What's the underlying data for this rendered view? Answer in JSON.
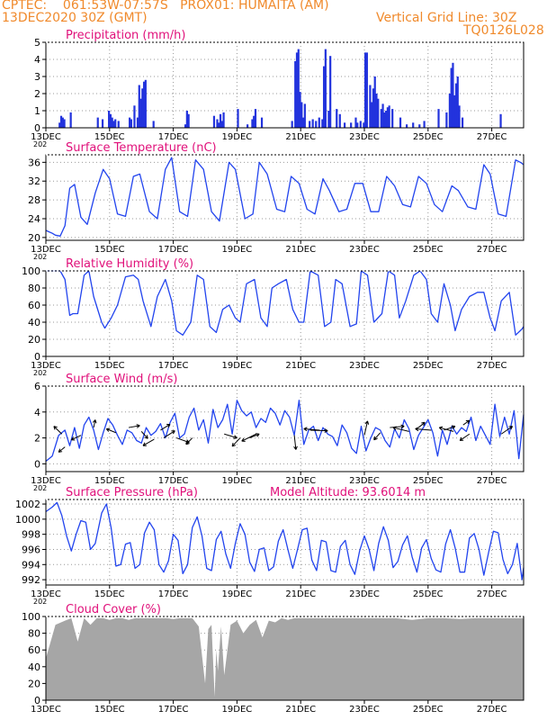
{
  "header": {
    "line1": "CPTEC:    061:53W-07:57S   PROX01: HUMAITA (AM)",
    "line2_left": "13DEC2020 30Z (GMT)",
    "line2_right": "Vertical Grid Line: 30Z",
    "line3_right": "TQ0126L028"
  },
  "colors": {
    "header": "#f08a2c",
    "title": "#e0107a",
    "line": "#2244ee",
    "bars": "#2233dd",
    "cloud": "#a6a6a6",
    "grid": "#999999"
  },
  "x_axis": {
    "labels": [
      "13DEC",
      "15DEC",
      "17DEC",
      "19DEC",
      "21DEC",
      "23DEC",
      "25DEC",
      "27DEC"
    ],
    "label_days": [
      0,
      2,
      4,
      6,
      8,
      10,
      12,
      14
    ],
    "range_days": [
      0,
      15
    ],
    "stub": "202"
  },
  "chart_data": [
    {
      "id": "precip",
      "type": "bar",
      "title": "Precipitation (mm/h)",
      "ylim": [
        0,
        5
      ],
      "yticks": [
        0,
        1,
        2,
        3,
        4,
        5
      ],
      "grid": true,
      "x": [
        1.6,
        1.75,
        2.0,
        2.1,
        2.85,
        2.95,
        3.0,
        3.35,
        4.35,
        4.45,
        5.25,
        5.4,
        5.55,
        6.0,
        6.3,
        6.5,
        6.75,
        7.8,
        7.9,
        7.95,
        8.0,
        8.05,
        8.1,
        8.25,
        8.35,
        8.45,
        8.55,
        8.65,
        8.75,
        8.9,
        9.1,
        9.2,
        9.35,
        9.55,
        9.7,
        9.85,
        9.95,
        10.05,
        10.2,
        10.3,
        10.4,
        10.55,
        10.65,
        10.75,
        10.85,
        11.1,
        11.3,
        11.5,
        11.7,
        11.85,
        12.3,
        12.55,
        12.7,
        12.75,
        12.8,
        12.85,
        12.9,
        12.95,
        13.05,
        14.25
      ],
      "values": [
        0.6,
        0.5,
        0.8,
        0.4,
        0.6,
        1.7,
        2.3,
        0.4,
        0.2,
        0.8,
        0.7,
        0.3,
        0.9,
        1.1,
        0.2,
        0.7,
        0.6,
        3.9,
        4.6,
        2.1,
        1.5,
        0.6,
        1.4,
        0.4,
        0.5,
        0.4,
        0.6,
        0.5,
        4.6,
        4.2,
        1.1,
        0.8,
        0.3,
        0.3,
        0.6,
        0.4,
        0.3,
        4.4,
        1.5,
        3.0,
        1.7,
        1.4,
        1.0,
        1.3,
        1.1,
        0.6,
        0.2,
        0.3,
        0.2,
        0.4,
        1.1,
        0.9,
        3.5,
        3.8,
        1.9,
        2.6,
        3.0,
        1.3,
        0.6,
        0.8
      ],
      "points": [
        [
          0.4,
          0.3
        ],
        [
          0.45,
          0.7
        ],
        [
          0.5,
          0.6
        ],
        [
          0.55,
          0.5
        ],
        [
          0.75,
          0.9
        ],
        [
          1.95,
          1.0
        ],
        [
          2.05,
          0.6
        ],
        [
          2.15,
          0.5
        ],
        [
          2.25,
          0.4
        ],
        [
          2.6,
          0.6
        ],
        [
          2.65,
          0.5
        ],
        [
          2.75,
          1.3
        ],
        [
          2.9,
          2.5
        ],
        [
          3.05,
          2.7
        ],
        [
          3.1,
          2.8
        ],
        [
          4.4,
          1.0
        ],
        [
          5.35,
          0.5
        ],
        [
          5.45,
          0.8
        ],
        [
          5.5,
          0.4
        ],
        [
          6.45,
          0.5
        ],
        [
          6.55,
          1.1
        ],
        [
          7.7,
          0.4
        ],
        [
          7.85,
          4.4
        ],
        [
          8.7,
          3.6
        ],
        [
          8.85,
          1.0
        ],
        [
          9.75,
          0.3
        ],
        [
          10.0,
          4.4
        ],
        [
          10.15,
          2.5
        ],
        [
          10.25,
          2.3
        ],
        [
          10.35,
          2.0
        ],
        [
          10.5,
          1.1
        ],
        [
          10.6,
          0.9
        ],
        [
          10.7,
          1.2
        ],
        [
          12.65,
          2.0
        ],
        [
          12.7,
          1.0
        ]
      ]
    },
    {
      "id": "temp",
      "type": "line",
      "title": "Surface Temperature (nC)",
      "ylim": [
        19.4,
        37.6
      ],
      "yticks": [
        20,
        24,
        28,
        32,
        36
      ],
      "grid": true,
      "x": [
        0,
        0.1,
        0.2,
        0.3,
        0.45,
        0.6,
        0.75,
        0.9,
        1.1,
        1.3,
        1.55,
        1.8,
        2.0,
        2.25,
        2.5,
        2.75,
        2.95,
        3.25,
        3.5,
        3.75,
        3.95,
        4.2,
        4.45,
        4.7,
        4.95,
        5.2,
        5.45,
        5.75,
        5.95,
        6.25,
        6.5,
        6.7,
        6.95,
        7.25,
        7.5,
        7.7,
        7.95,
        8.2,
        8.45,
        8.7,
        8.9,
        9.2,
        9.45,
        9.7,
        9.95,
        10.2,
        10.45,
        10.7,
        10.95,
        11.2,
        11.45,
        11.7,
        11.95,
        12.2,
        12.45,
        12.75,
        12.95,
        13.25,
        13.5,
        13.75,
        13.95,
        14.2,
        14.45,
        14.75,
        14.9,
        15.0
      ],
      "y": [
        21.5,
        21.2,
        20.9,
        20.5,
        20.3,
        22.5,
        30.5,
        31.3,
        24.3,
        22.8,
        29.5,
        34.5,
        32.5,
        25.0,
        24.5,
        33.0,
        33.5,
        25.5,
        24.0,
        34.5,
        37.0,
        25.5,
        24.5,
        36.5,
        34.5,
        25.5,
        23.5,
        36.0,
        34.5,
        24.0,
        25.0,
        36.0,
        33.5,
        26.0,
        25.5,
        33.0,
        31.5,
        26.0,
        25.0,
        32.5,
        30.0,
        25.5,
        26.0,
        31.5,
        31.5,
        25.5,
        25.5,
        33.0,
        31.0,
        27.0,
        26.5,
        33.0,
        31.5,
        27.0,
        25.5,
        31.0,
        30.0,
        26.5,
        26.0,
        35.5,
        33.5,
        25.0,
        24.5,
        36.5,
        36.0,
        35.5
      ]
    },
    {
      "id": "rh",
      "type": "line",
      "title": "Relative Humidity (%)",
      "ylim": [
        0,
        100
      ],
      "yticks": [
        0,
        20,
        40,
        60,
        80,
        100
      ],
      "grid": true,
      "x": [
        0,
        0.25,
        0.45,
        0.6,
        0.75,
        0.85,
        1.0,
        1.2,
        1.35,
        1.5,
        1.75,
        1.85,
        2.05,
        2.25,
        2.5,
        2.75,
        2.9,
        3.05,
        3.3,
        3.5,
        3.75,
        3.95,
        4.1,
        4.3,
        4.55,
        4.75,
        4.95,
        5.15,
        5.35,
        5.55,
        5.75,
        5.95,
        6.1,
        6.3,
        6.55,
        6.75,
        6.95,
        7.1,
        7.3,
        7.55,
        7.75,
        7.95,
        8.1,
        8.3,
        8.55,
        8.75,
        8.95,
        9.1,
        9.3,
        9.55,
        9.75,
        9.9,
        10.1,
        10.3,
        10.55,
        10.75,
        10.95,
        11.1,
        11.3,
        11.55,
        11.75,
        11.95,
        12.1,
        12.3,
        12.5,
        12.7,
        12.85,
        13.05,
        13.3,
        13.55,
        13.75,
        13.95,
        14.1,
        14.3,
        14.55,
        14.75,
        14.95,
        15.0
      ],
      "y": [
        100,
        100,
        100,
        90,
        48,
        50,
        50,
        95,
        100,
        70,
        40,
        33,
        45,
        60,
        93,
        95,
        90,
        65,
        35,
        70,
        90,
        65,
        30,
        25,
        40,
        95,
        90,
        35,
        28,
        55,
        60,
        45,
        40,
        85,
        90,
        45,
        35,
        80,
        85,
        90,
        55,
        40,
        40,
        100,
        95,
        35,
        40,
        90,
        85,
        35,
        38,
        100,
        95,
        40,
        50,
        100,
        95,
        45,
        65,
        95,
        100,
        90,
        50,
        40,
        85,
        60,
        30,
        55,
        70,
        75,
        75,
        45,
        30,
        65,
        75,
        25,
        32,
        35
      ]
    },
    {
      "id": "wind",
      "type": "line",
      "title": "Surface Wind (m/s)",
      "ylim": [
        -0.6,
        6
      ],
      "yticks": [
        0,
        2,
        4,
        6
      ],
      "grid": true,
      "x": [
        0,
        0.2,
        0.4,
        0.6,
        0.75,
        0.9,
        1.05,
        1.2,
        1.35,
        1.5,
        1.65,
        1.8,
        1.95,
        2.1,
        2.25,
        2.4,
        2.55,
        2.7,
        2.85,
        3.0,
        3.15,
        3.3,
        3.45,
        3.6,
        3.75,
        3.9,
        4.05,
        4.2,
        4.35,
        4.5,
        4.65,
        4.8,
        4.95,
        5.1,
        5.25,
        5.4,
        5.55,
        5.7,
        5.85,
        6.0,
        6.15,
        6.3,
        6.45,
        6.6,
        6.75,
        6.9,
        7.05,
        7.2,
        7.35,
        7.5,
        7.65,
        7.8,
        7.95,
        8.1,
        8.25,
        8.4,
        8.55,
        8.7,
        8.85,
        9.0,
        9.15,
        9.3,
        9.45,
        9.6,
        9.75,
        9.9,
        10.05,
        10.2,
        10.35,
        10.5,
        10.65,
        10.8,
        10.95,
        11.1,
        11.25,
        11.4,
        11.55,
        11.7,
        11.85,
        12.0,
        12.15,
        12.3,
        12.45,
        12.6,
        12.75,
        12.9,
        13.05,
        13.2,
        13.35,
        13.5,
        13.65,
        13.8,
        13.95,
        14.1,
        14.25,
        14.4,
        14.55,
        14.7,
        14.85,
        15.0
      ],
      "y": [
        0.2,
        0.6,
        2.2,
        2.6,
        1.4,
        2.8,
        1.2,
        3.0,
        3.6,
        2.6,
        1.1,
        2.4,
        3.5,
        3.0,
        2.2,
        1.5,
        2.6,
        2.4,
        1.8,
        1.6,
        2.8,
        2.2,
        2.5,
        3.1,
        2.0,
        3.2,
        3.9,
        2.0,
        2.3,
        3.6,
        4.3,
        2.6,
        3.4,
        1.6,
        4.2,
        2.8,
        3.4,
        4.6,
        2.3,
        4.9,
        4.1,
        3.7,
        4.0,
        2.8,
        3.5,
        3.2,
        4.3,
        3.9,
        3.0,
        4.1,
        3.6,
        2.2,
        4.9,
        1.5,
        2.6,
        2.9,
        1.8,
        2.8,
        2.3,
        2.1,
        1.4,
        3.0,
        2.4,
        1.2,
        0.8,
        2.9,
        1.0,
        2.0,
        2.8,
        2.6,
        1.8,
        1.3,
        2.7,
        2.0,
        3.4,
        2.7,
        1.1,
        2.2,
        2.8,
        3.4,
        2.4,
        0.6,
        2.6,
        1.5,
        2.9,
        2.3,
        2.8,
        2.5,
        3.6,
        1.8,
        2.9,
        2.2,
        1.5,
        4.6,
        2.1,
        3.6,
        2.3,
        4.1,
        0.4,
        3.8
      ],
      "arrows": [
        [
          0.5,
          2.3,
          -0.25,
          0.6
        ],
        [
          0.6,
          1.3,
          -0.2,
          -0.4
        ],
        [
          1.1,
          2.2,
          -0.3,
          -0.35
        ],
        [
          1.5,
          2.8,
          0.05,
          0.6
        ],
        [
          2.2,
          2.4,
          -0.3,
          0.3
        ],
        [
          2.6,
          2.8,
          0.35,
          0.15
        ],
        [
          3.0,
          2.5,
          0.2,
          -0.55
        ],
        [
          3.4,
          1.9,
          -0.35,
          -0.5
        ],
        [
          3.6,
          2.6,
          0.3,
          0.45
        ],
        [
          3.7,
          2.0,
          0.35,
          0.55
        ],
        [
          4.1,
          2.0,
          0.4,
          -0.35
        ],
        [
          4.6,
          2.0,
          -0.2,
          -0.5
        ],
        [
          5.6,
          2.3,
          0.4,
          -0.3
        ],
        [
          6.1,
          2.0,
          -0.25,
          -0.65
        ],
        [
          6.4,
          2.0,
          0.3,
          0.3
        ],
        [
          6.6,
          2.3,
          -0.45,
          -0.55
        ],
        [
          7.8,
          2.2,
          0.05,
          -1.1
        ],
        [
          8.3,
          2.6,
          0.55,
          -0.05
        ],
        [
          8.6,
          2.6,
          -0.5,
          0.1
        ],
        [
          10.0,
          2.2,
          0.1,
          1.1
        ],
        [
          10.5,
          2.4,
          -0.2,
          -0.55
        ],
        [
          10.8,
          2.8,
          0.45,
          0.1
        ],
        [
          11.4,
          2.5,
          -0.5,
          0.3
        ],
        [
          11.7,
          2.8,
          0.2,
          0.4
        ],
        [
          12.1,
          2.6,
          -0.5,
          0.1
        ],
        [
          12.5,
          2.6,
          0.35,
          0.3
        ],
        [
          12.8,
          2.5,
          -0.45,
          0.3
        ],
        [
          13.1,
          3.0,
          0.2,
          0.35
        ],
        [
          13.3,
          2.3,
          -0.3,
          -0.5
        ],
        [
          14.3,
          2.3,
          0.35,
          0.6
        ]
      ]
    },
    {
      "id": "pressure",
      "type": "line",
      "title": "Surface Pressure (hPa)",
      "annotation": "Model Altitude: 93.6014 m",
      "ylim": [
        991.3,
        1002.6
      ],
      "yticks": [
        992,
        994,
        996,
        998,
        1000,
        1002
      ],
      "grid": true,
      "x": [
        0,
        0.2,
        0.35,
        0.5,
        0.65,
        0.8,
        0.95,
        1.1,
        1.25,
        1.4,
        1.55,
        1.75,
        1.9,
        2.05,
        2.2,
        2.35,
        2.5,
        2.65,
        2.8,
        2.95,
        3.1,
        3.25,
        3.4,
        3.55,
        3.7,
        3.85,
        4.0,
        4.15,
        4.3,
        4.45,
        4.6,
        4.75,
        4.9,
        5.05,
        5.2,
        5.35,
        5.5,
        5.65,
        5.8,
        5.95,
        6.1,
        6.25,
        6.4,
        6.55,
        6.7,
        6.85,
        7.0,
        7.15,
        7.3,
        7.45,
        7.6,
        7.75,
        7.9,
        8.05,
        8.2,
        8.35,
        8.5,
        8.65,
        8.8,
        8.95,
        9.1,
        9.25,
        9.4,
        9.55,
        9.7,
        9.85,
        10.0,
        10.15,
        10.3,
        10.45,
        10.6,
        10.75,
        10.9,
        11.05,
        11.2,
        11.35,
        11.5,
        11.65,
        11.8,
        11.95,
        12.1,
        12.25,
        12.4,
        12.55,
        12.7,
        12.85,
        13.0,
        13.15,
        13.3,
        13.45,
        13.6,
        13.75,
        13.9,
        14.05,
        14.2,
        14.35,
        14.5,
        14.65,
        14.8,
        14.95,
        15.0
      ],
      "y": [
        1001.0,
        1001.6,
        1002.2,
        1000.5,
        997.8,
        995.8,
        998.0,
        999.8,
        999.6,
        996.0,
        996.8,
        1000.8,
        1002.0,
        998.8,
        993.8,
        994.0,
        996.7,
        996.9,
        993.5,
        994.0,
        998.2,
        999.6,
        998.6,
        994.0,
        993.0,
        994.5,
        998.0,
        997.2,
        992.8,
        994.0,
        998.9,
        1000.3,
        997.8,
        993.5,
        993.2,
        997.3,
        998.4,
        995.4,
        993.5,
        996.8,
        999.4,
        998.0,
        994.3,
        993.1,
        996.0,
        996.2,
        993.2,
        993.7,
        997.1,
        998.6,
        996.0,
        993.5,
        996.0,
        998.6,
        998.8,
        994.6,
        993.2,
        997.2,
        997.0,
        993.2,
        993.0,
        996.4,
        997.2,
        994.0,
        992.7,
        995.8,
        997.8,
        996.0,
        993.2,
        996.8,
        999.0,
        997.2,
        993.6,
        994.4,
        996.6,
        997.8,
        995.0,
        993.0,
        996.2,
        997.3,
        994.8,
        993.3,
        993.0,
        996.7,
        998.6,
        996.2,
        993.0,
        993.0,
        997.5,
        998.1,
        996.0,
        992.6,
        995.6,
        998.4,
        998.2,
        994.7,
        992.8,
        994.0,
        996.8,
        992.0,
        993.6
      ]
    },
    {
      "id": "cloud",
      "type": "area",
      "title": "Cloud Cover (%)",
      "ylim": [
        0,
        100
      ],
      "yticks": [
        0,
        20,
        40,
        60,
        80,
        100
      ],
      "grid": true,
      "x": [
        0,
        0.3,
        0.6,
        0.8,
        1.0,
        1.2,
        1.4,
        1.6,
        1.8,
        2.0,
        2.2,
        2.4,
        2.6,
        2.8,
        3.0,
        3.2,
        3.4,
        3.6,
        3.8,
        4.0,
        4.2,
        4.4,
        4.6,
        4.8,
        5.0,
        5.1,
        5.2,
        5.3,
        5.35,
        5.4,
        5.5,
        5.6,
        5.8,
        6.0,
        6.2,
        6.4,
        6.6,
        6.8,
        7.0,
        7.2,
        7.4,
        7.6,
        7.8,
        8.0,
        8.2,
        8.4,
        8.6,
        8.8,
        9.0,
        9.5,
        10.0,
        10.5,
        11.0,
        11.5,
        12.0,
        12.5,
        13.0,
        13.5,
        14.0,
        14.5,
        15.0
      ],
      "y": [
        50,
        90,
        95,
        98,
        70,
        98,
        90,
        98,
        98,
        96,
        98,
        98,
        96,
        98,
        98,
        98,
        98,
        98,
        98,
        97,
        98,
        98,
        98,
        88,
        20,
        85,
        90,
        4,
        60,
        35,
        88,
        30,
        90,
        95,
        80,
        90,
        96,
        75,
        95,
        93,
        98,
        96,
        98,
        98,
        98,
        98,
        98,
        98,
        98,
        98,
        98,
        98,
        98,
        96,
        98,
        98,
        97,
        98,
        98,
        98,
        98
      ]
    }
  ]
}
